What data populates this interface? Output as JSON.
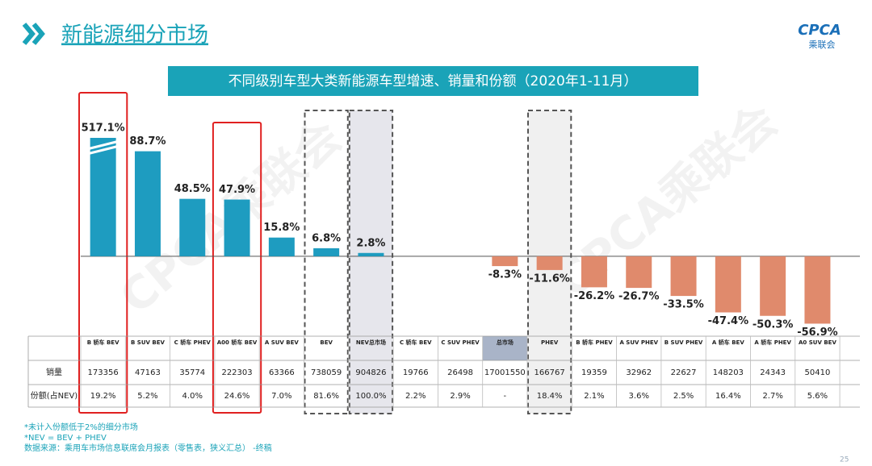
{
  "header": {
    "title": "新能源细分市场",
    "logo": "CPCA",
    "logo_sub": "乘联会",
    "page": "25"
  },
  "watermark": "CPCA乘联会",
  "chart_data": {
    "type": "bar",
    "title": "不同级别车型大类新能源车型增速、销量和份额（2020年1-11月）",
    "categories": [
      "B 轿车 BEV",
      "B SUV BEV",
      "C 轿车 PHEV",
      "A00 轿车 BEV",
      "A SUV BEV",
      "BEV",
      "NEV总市场",
      "C 轿车 BEV",
      "C SUV PHEV",
      "总市场",
      "PHEV",
      "B 轿车 PHEV",
      "A SUV PHEV",
      "B SUV PHEV",
      "A 轿车 BEV",
      "A 轿车 PHEV",
      "A0 SUV BEV"
    ],
    "values": [
      517.1,
      88.7,
      48.5,
      47.9,
      15.8,
      6.8,
      2.8,
      null,
      null,
      -8.3,
      -11.6,
      -26.2,
      -26.7,
      -33.5,
      -47.4,
      -50.3,
      -56.9
    ],
    "value_labels": [
      "517.1%",
      "88.7%",
      "48.5%",
      "47.9%",
      "15.8%",
      "6.8%",
      "2.8%",
      null,
      null,
      "-8.3%",
      "-11.6%",
      "-26.2%",
      "-26.7%",
      "-33.5%",
      "-47.4%",
      "-50.3%",
      "-56.9%"
    ],
    "positive_color": "#1e9cc0",
    "negative_color": "#e08a6c",
    "ylim": [
      -60,
      100
    ]
  },
  "table": {
    "row_labels": [
      "销量",
      "份额(占NEV)"
    ],
    "rows": [
      [
        173356,
        47163,
        35774,
        222303,
        63366,
        738059,
        904826,
        19766,
        26498,
        17001550,
        166767,
        19359,
        32962,
        22627,
        148203,
        24343,
        50410
      ],
      [
        "19.2%",
        "5.2%",
        "4.0%",
        "24.6%",
        "7.0%",
        "81.6%",
        "100.0%",
        "2.2%",
        "2.9%",
        "-",
        "18.4%",
        "2.1%",
        "3.6%",
        "2.5%",
        "16.4%",
        "2.7%",
        "5.6%"
      ]
    ]
  },
  "notes": [
    "*未计入份额低于2%的细分市场",
    "*NEV = BEV + PHEV",
    "数据来源：乘用车市场信息联席会月报表（零售表，狭义汇总） -终稿"
  ]
}
